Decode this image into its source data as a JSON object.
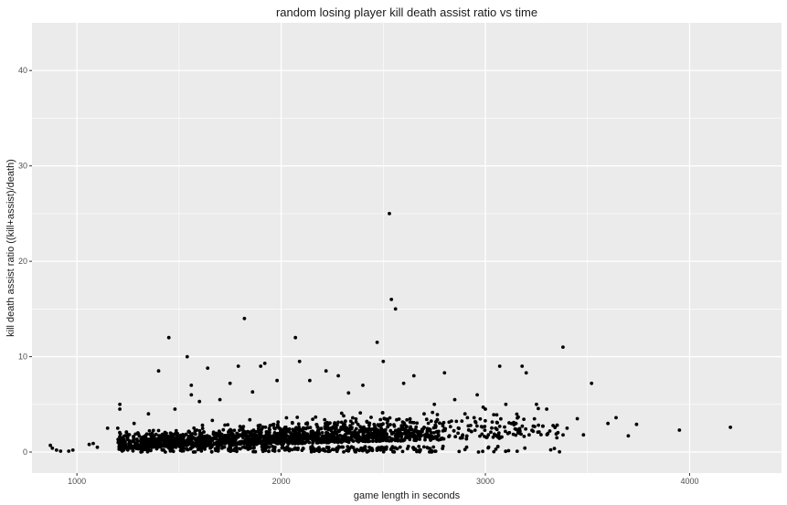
{
  "chart_data": {
    "type": "scatter",
    "title": "random losing player kill death assist ratio vs time",
    "xlabel": "game length in seconds",
    "ylabel": "kill death assist ratio ((kill+assist)/death)",
    "xlim": [
      780,
      4450
    ],
    "ylim": [
      -2.2,
      45
    ],
    "x_ticks": [
      1000,
      2000,
      3000,
      4000
    ],
    "y_ticks": [
      0,
      10,
      20,
      30,
      40
    ],
    "x_tick_labels": [
      "1000",
      "2000",
      "3000",
      "4000"
    ],
    "y_tick_labels": [
      "0",
      "10",
      "20",
      "30",
      "40"
    ],
    "grid": true,
    "panel_background": "#ebebeb",
    "grid_color": "#ffffff",
    "point_color": "#000000",
    "points": [
      [
        2530,
        25
      ],
      [
        2540,
        16
      ],
      [
        2560,
        15
      ],
      [
        1820,
        14
      ],
      [
        2070,
        12
      ],
      [
        2470,
        11.5
      ],
      [
        1450,
        12
      ],
      [
        3380,
        11
      ],
      [
        1540,
        10
      ],
      [
        1790,
        9
      ],
      [
        2090,
        9.5
      ],
      [
        2500,
        9.5
      ],
      [
        1900,
        9
      ],
      [
        1920,
        9.3
      ],
      [
        3070,
        9
      ],
      [
        3180,
        9
      ],
      [
        1640,
        8.8
      ],
      [
        1400,
        8.5
      ],
      [
        2220,
        8.5
      ],
      [
        2280,
        8
      ],
      [
        2650,
        8
      ],
      [
        3200,
        8.3
      ],
      [
        2800,
        8.3
      ],
      [
        3520,
        7.2
      ],
      [
        1560,
        7
      ],
      [
        1750,
        7.2
      ],
      [
        1980,
        7.5
      ],
      [
        2400,
        7
      ],
      [
        2600,
        7.2
      ],
      [
        2140,
        7.5
      ],
      [
        2960,
        6
      ],
      [
        1560,
        6
      ],
      [
        1860,
        6.3
      ],
      [
        2330,
        6.2
      ],
      [
        3640,
        3.6
      ],
      [
        3600,
        3
      ],
      [
        3740,
        2.9
      ],
      [
        3950,
        2.3
      ],
      [
        4200,
        2.6
      ],
      [
        3700,
        1.7
      ],
      [
        3480,
        1.8
      ],
      [
        3400,
        2.5
      ],
      [
        3300,
        4.5
      ],
      [
        3250,
        5
      ],
      [
        3100,
        5
      ],
      [
        3000,
        4.5
      ],
      [
        2900,
        4
      ],
      [
        2850,
        5.5
      ],
      [
        3150,
        3
      ],
      [
        3050,
        2.5
      ],
      [
        3350,
        1.5
      ],
      [
        3450,
        3.5
      ],
      [
        1210,
        5
      ],
      [
        1210,
        4.5
      ],
      [
        1200,
        2.5
      ],
      [
        1150,
        2.5
      ],
      [
        1080,
        0.9
      ],
      [
        1060,
        0.8
      ],
      [
        960,
        0.1
      ],
      [
        980,
        0.2
      ],
      [
        900,
        0.2
      ],
      [
        870,
        0.7
      ],
      [
        880,
        0.4
      ],
      [
        920,
        0.1
      ],
      [
        1100,
        0.5
      ],
      [
        1280,
        3
      ],
      [
        1350,
        4
      ],
      [
        1480,
        4.5
      ],
      [
        1600,
        5.3
      ],
      [
        1700,
        5.5
      ],
      [
        2700,
        4
      ],
      [
        2750,
        5
      ],
      [
        2950,
        3.2
      ],
      [
        2350,
        3
      ],
      [
        2200,
        1.5
      ]
    ]
  }
}
